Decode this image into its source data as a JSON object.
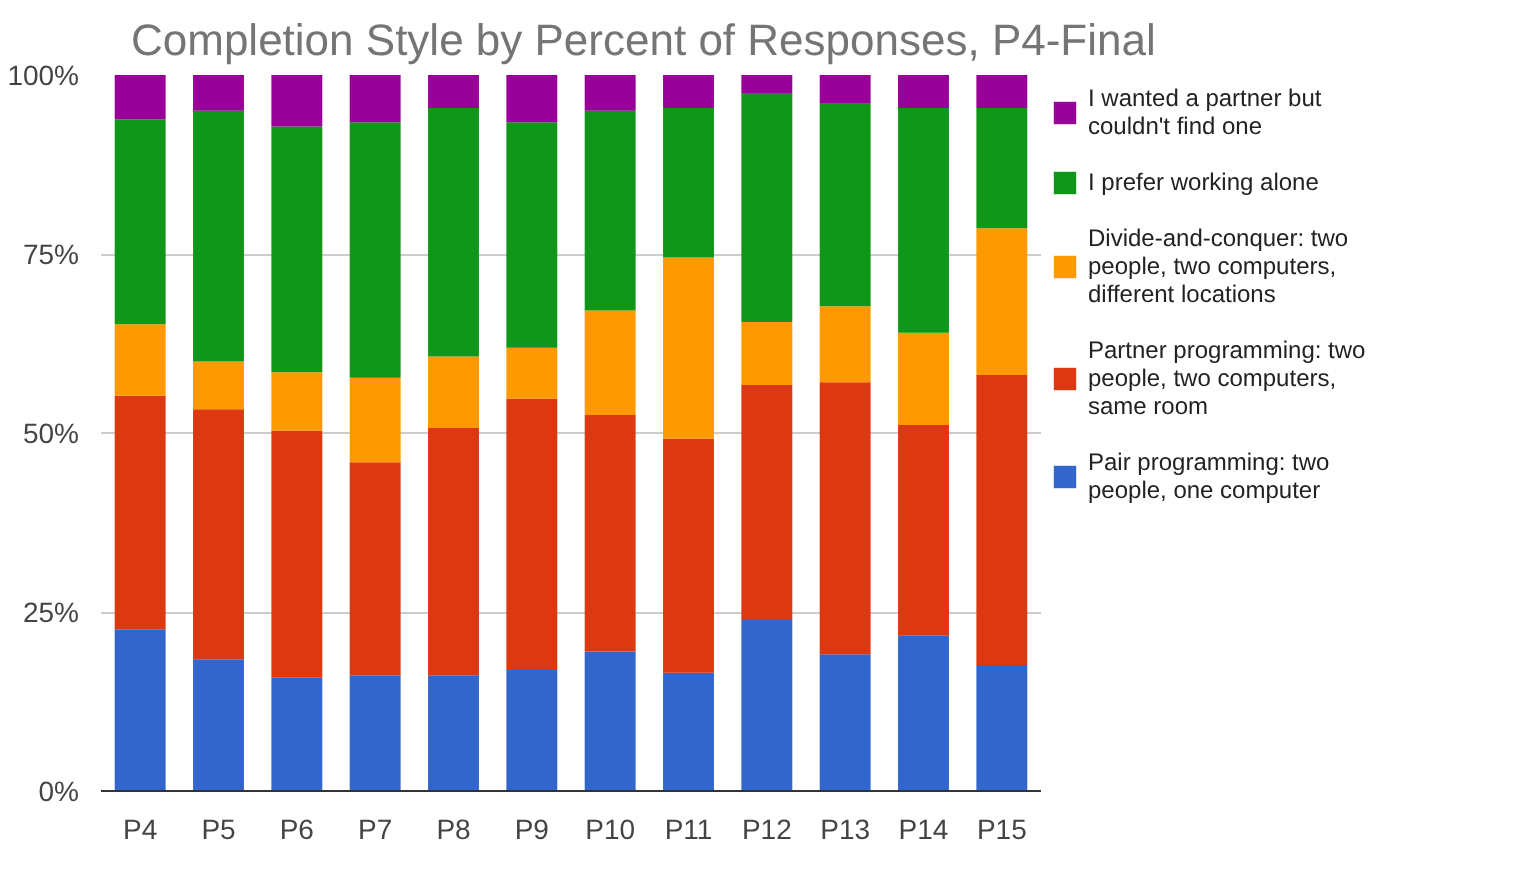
{
  "chart_data": {
    "type": "bar",
    "stacked": true,
    "title": "Completion Style by Percent of Responses, P4-Final",
    "categories": [
      "P4",
      "P5",
      "P6",
      "P7",
      "P8",
      "P9",
      "P10",
      "P11",
      "P12",
      "P13",
      "P14",
      "P15"
    ],
    "series": [
      {
        "name": "Pair programming: two people, one computer",
        "color": "#3366cc",
        "values": [
          22.6,
          18.4,
          15.8,
          16.1,
          16.1,
          16.9,
          19.5,
          16.5,
          23.9,
          19.1,
          21.7,
          17.6
        ]
      },
      {
        "name": "Partner programming: two people, two computers, same room",
        "color": "#dc3912",
        "values": [
          32.6,
          34.9,
          34.5,
          29.8,
          34.6,
          37.9,
          33.0,
          32.7,
          32.8,
          38.0,
          29.4,
          40.5
        ]
      },
      {
        "name": "Divide-and-conquer: two people, two computers, different locations",
        "color": "#ff9900",
        "values": [
          10.0,
          6.7,
          8.2,
          11.8,
          10.0,
          7.1,
          14.6,
          25.3,
          8.8,
          10.6,
          12.9,
          20.5
        ]
      },
      {
        "name": "I prefer working alone",
        "color": "#109618",
        "values": [
          28.6,
          35.0,
          34.3,
          35.7,
          34.7,
          31.5,
          27.9,
          20.9,
          32.0,
          28.3,
          31.4,
          16.8
        ]
      },
      {
        "name": "I wanted a partner but couldn't find one",
        "color": "#990099",
        "values": [
          6.2,
          5.0,
          7.2,
          6.6,
          4.6,
          6.6,
          5.0,
          4.6,
          2.5,
          4.0,
          4.6,
          4.6
        ]
      }
    ],
    "ylim": [
      0,
      100
    ],
    "yticks": [
      {
        "value": 0,
        "label": "0%"
      },
      {
        "value": 25,
        "label": "25%"
      },
      {
        "value": 50,
        "label": "50%"
      },
      {
        "value": 75,
        "label": "75%"
      },
      {
        "value": 100,
        "label": "100%"
      }
    ],
    "grid": "y",
    "legend": "right"
  }
}
